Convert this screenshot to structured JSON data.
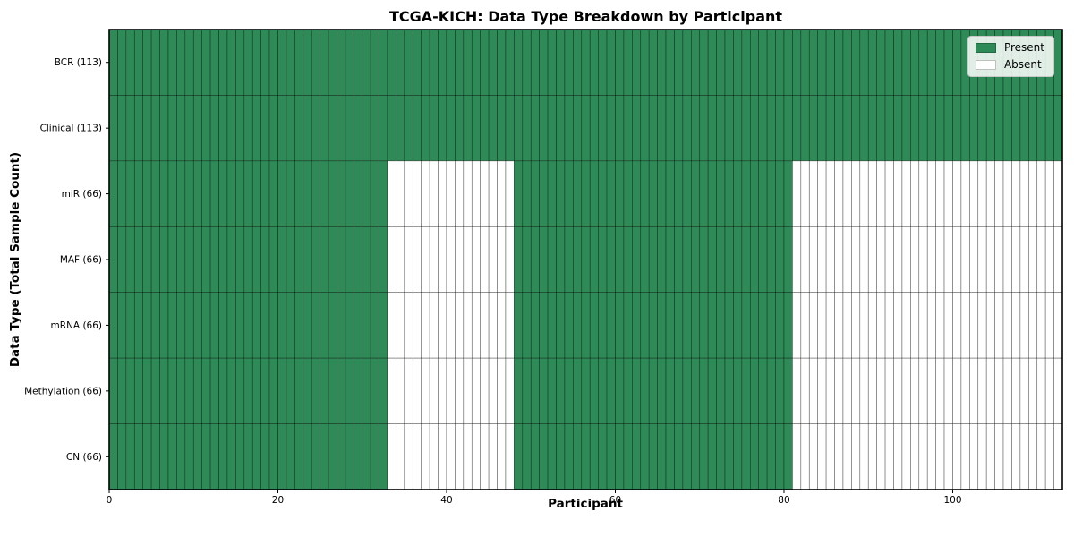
{
  "chart_data": {
    "type": "heatmap",
    "title": "TCGA-KICH: Data Type Breakdown by Participant",
    "xlabel": "Participant",
    "ylabel": "Data Type (Total Sample Count)",
    "x_range": [
      0,
      113
    ],
    "x_ticks": [
      0,
      20,
      40,
      60,
      80,
      100
    ],
    "n_participants": 113,
    "rows": [
      {
        "label": "BCR (113)",
        "data_type": "BCR",
        "total_samples": 113,
        "present_segments": [
          [
            0,
            113
          ]
        ]
      },
      {
        "label": "Clinical (113)",
        "data_type": "Clinical",
        "total_samples": 113,
        "present_segments": [
          [
            0,
            113
          ]
        ]
      },
      {
        "label": "miR (66)",
        "data_type": "miR",
        "total_samples": 66,
        "present_segments": [
          [
            0,
            33
          ],
          [
            48,
            81
          ]
        ]
      },
      {
        "label": "MAF (66)",
        "data_type": "MAF",
        "total_samples": 66,
        "present_segments": [
          [
            0,
            33
          ],
          [
            48,
            81
          ]
        ]
      },
      {
        "label": "mRNA (66)",
        "data_type": "mRNA",
        "total_samples": 66,
        "present_segments": [
          [
            0,
            33
          ],
          [
            48,
            81
          ]
        ]
      },
      {
        "label": "Methylation (66)",
        "data_type": "Methylation",
        "total_samples": 66,
        "present_segments": [
          [
            0,
            33
          ],
          [
            48,
            81
          ]
        ]
      },
      {
        "label": "CN (66)",
        "data_type": "CN",
        "total_samples": 66,
        "present_segments": [
          [
            0,
            33
          ],
          [
            48,
            81
          ]
        ]
      }
    ],
    "legend": {
      "position": "upper-right",
      "items": [
        {
          "label": "Present",
          "color": "#2e8b57"
        },
        {
          "label": "Absent",
          "color": "#ffffff"
        }
      ]
    },
    "colors": {
      "present": "#2e8b57",
      "absent": "#ffffff",
      "cell_edge": "rgba(0,0,0,0.55)",
      "axis": "#000000"
    },
    "grid": false
  }
}
